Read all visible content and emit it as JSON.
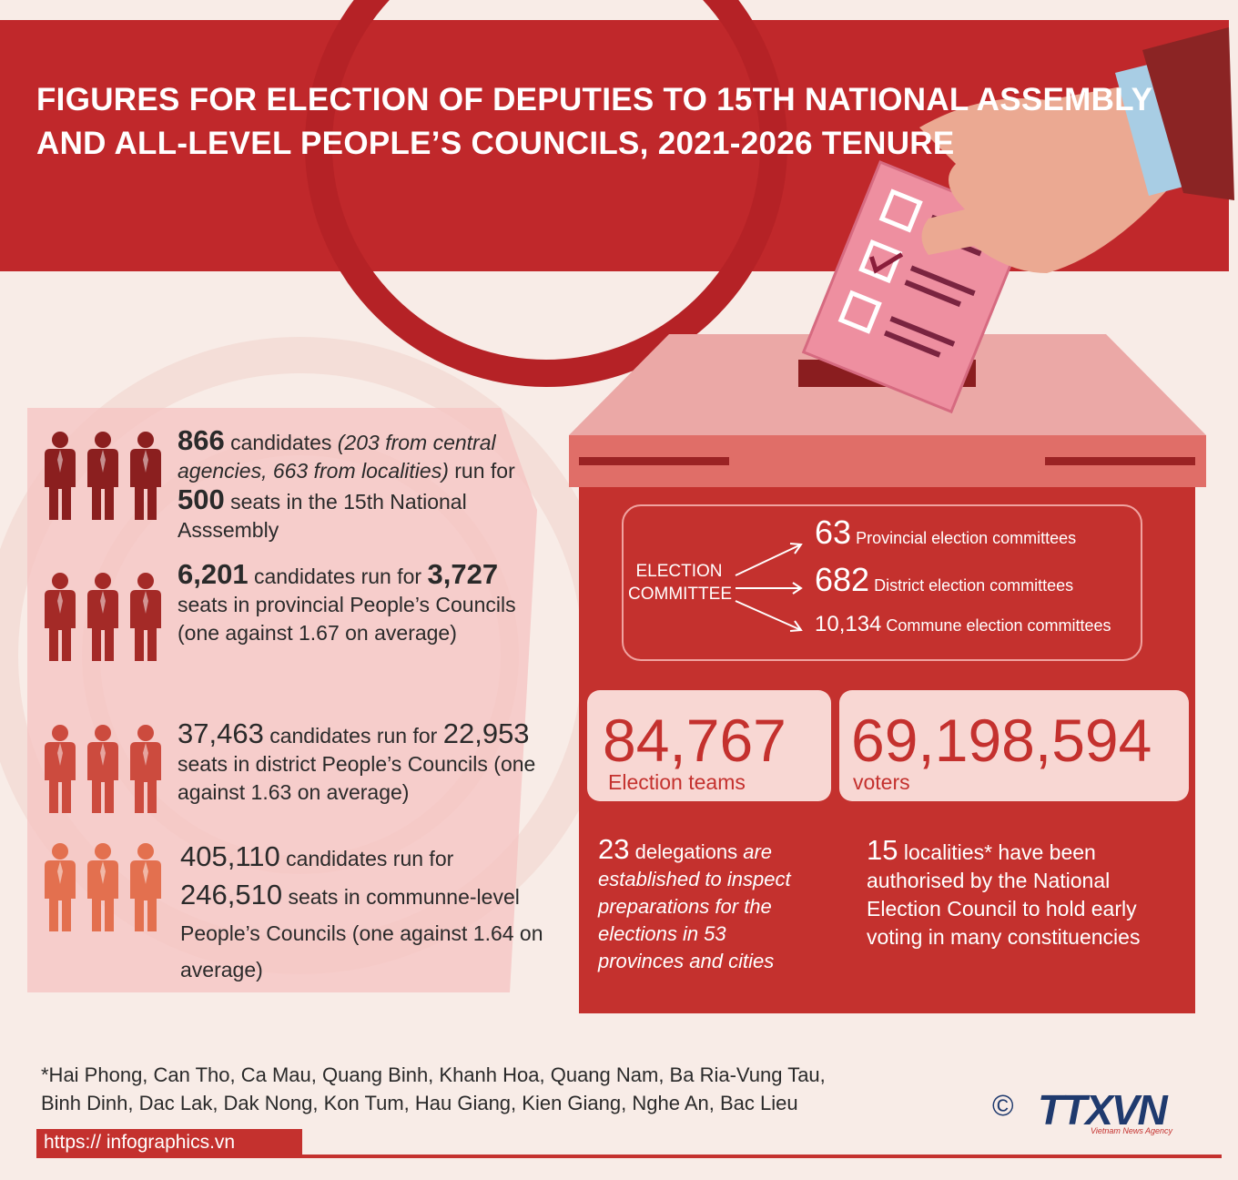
{
  "header": {
    "title_lines": [
      "FIGURES FOR ELECTION OF DEPUTIES TO 15TH NATIONAL ASSEMBLY",
      "AND ALL-LEVEL PEOPLE’S COUNCILS, 2021-2026 TENURE"
    ]
  },
  "candidates": [
    {
      "runs": [
        {
          "text": "866",
          "style": "number"
        },
        {
          "text": " candidates ",
          "style": "plain"
        },
        {
          "text": "(203 from central agencies, 663 from localities)",
          "style": "italic"
        },
        {
          "text": " run for ",
          "style": "plain"
        },
        {
          "text": "500",
          "style": "number"
        },
        {
          "text": " seats in the 15th National Asssembly",
          "style": "plain"
        }
      ]
    },
    {
      "runs": [
        {
          "text": "6,201",
          "style": "number"
        },
        {
          "text": " candidates run for ",
          "style": "plain"
        },
        {
          "text": "3,727",
          "style": "number"
        },
        {
          "text": " seats in provincial People’s Councils (one against 1.67 on average)",
          "style": "plain"
        }
      ]
    },
    {
      "runs": [
        {
          "text": "37,463",
          "style": "light-number"
        },
        {
          "text": " candidates run for ",
          "style": "plain"
        },
        {
          "text": "22,953",
          "style": "light-number"
        },
        {
          "text": " seats in district People’s Councils (one against 1.63 on average)",
          "style": "plain"
        }
      ]
    },
    {
      "runs": [
        {
          "text": "405,110",
          "style": "light-number"
        },
        {
          "text": " candidates run for ",
          "style": "plain"
        },
        {
          "text": "246,510",
          "style": "light-number"
        },
        {
          "text": " seats in communne-level People’s Councils (one against 1.64 on average)",
          "style": "plain"
        }
      ]
    }
  ],
  "committee": {
    "label": "ELECTION COMMITTEE",
    "items": [
      {
        "number": "63",
        "label": "Provincial election committees"
      },
      {
        "number": "682",
        "label": "District election committees"
      },
      {
        "number": "10,134",
        "label": "Commune election committees"
      }
    ]
  },
  "stats": [
    {
      "number": "84,767",
      "label": "Election teams"
    },
    {
      "number": "69,198,594",
      "label": "voters"
    }
  ],
  "notes": [
    {
      "runs": [
        {
          "text": "23",
          "style": "light-number"
        },
        {
          "text": " delegations ",
          "style": "plain"
        },
        {
          "text": "are established to inspect preparations for the elections in 53 provinces and cities",
          "style": "italic"
        }
      ]
    },
    {
      "runs": [
        {
          "text": "15",
          "style": "light-number"
        },
        {
          "text": " localities* have been authorised by the National Election Council to hold early voting in many constituencies",
          "style": "plain"
        }
      ]
    }
  ],
  "footnote": "*Hai Phong, Can Tho, Ca Mau, Quang Binh, Khanh Hoa, Quang Nam, Ba Ria-Vung Tau, Binh Dinh, Dac Lak, Dak Nong, Kon Tum, Hau Giang, Kien Giang, Nghe An, Bac Lieu",
  "footer": {
    "url": "https:// infographics.vn",
    "copyright": "©",
    "logo": "TTXVN",
    "agency": "Vietnam News Agency"
  }
}
